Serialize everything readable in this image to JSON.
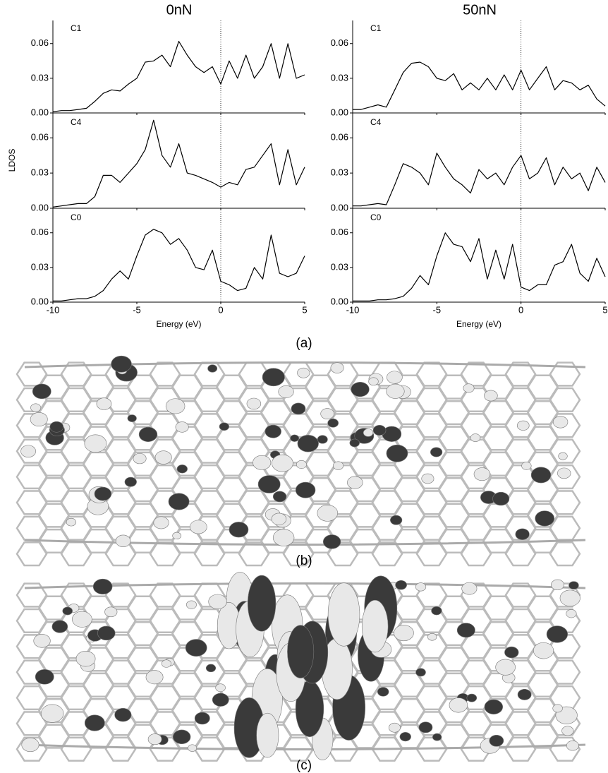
{
  "columns": [
    "0nN",
    "50nN"
  ],
  "ylabel": "LDOS",
  "captions": [
    "(a)",
    "(b)",
    "(c)"
  ],
  "chart_data": [
    {
      "type": "line",
      "annotation": "C1",
      "xlim": [
        -10,
        5
      ],
      "ylim": [
        0,
        0.08
      ],
      "xticks": [
        -10,
        -5,
        0,
        5
      ],
      "yticks": [
        {
          "value": 0,
          "label": "0.00"
        },
        0.03,
        0.06
      ],
      "vline": 0,
      "color": "#000000",
      "x": [
        -10,
        -9.5,
        -9,
        -8.5,
        -8,
        -7.5,
        -7,
        -6.5,
        -6,
        -5.5,
        -5,
        -4.5,
        -4,
        -3.5,
        -3,
        -2.5,
        -2,
        -1.5,
        -1,
        -0.5,
        0,
        0.5,
        1,
        1.5,
        2,
        2.5,
        3,
        3.5,
        4,
        4.5,
        5
      ],
      "values": [
        0.001,
        0.002,
        0.002,
        0.003,
        0.004,
        0.01,
        0.017,
        0.02,
        0.019,
        0.025,
        0.03,
        0.044,
        0.045,
        0.05,
        0.04,
        0.062,
        0.05,
        0.04,
        0.035,
        0.04,
        0.025,
        0.045,
        0.03,
        0.05,
        0.03,
        0.04,
        0.06,
        0.03,
        0.06,
        0.03,
        0.033
      ]
    },
    {
      "type": "line",
      "annotation": "C1",
      "xlim": [
        -10,
        5
      ],
      "ylim": [
        0,
        0.08
      ],
      "xticks": [
        -10,
        -5,
        0,
        5
      ],
      "yticks": [
        {
          "value": 0,
          "label": "0.00"
        },
        0.03,
        0.06
      ],
      "vline": 0,
      "color": "#000000",
      "x": [
        -10,
        -9.5,
        -9,
        -8.5,
        -8,
        -7.5,
        -7,
        -6.5,
        -6,
        -5.5,
        -5,
        -4.5,
        -4,
        -3.5,
        -3,
        -2.5,
        -2,
        -1.5,
        -1,
        -0.5,
        0,
        0.5,
        1,
        1.5,
        2,
        2.5,
        3,
        3.5,
        4,
        4.5,
        5
      ],
      "values": [
        0.003,
        0.003,
        0.005,
        0.007,
        0.005,
        0.02,
        0.035,
        0.043,
        0.044,
        0.04,
        0.03,
        0.028,
        0.034,
        0.02,
        0.026,
        0.02,
        0.03,
        0.02,
        0.033,
        0.02,
        0.037,
        0.02,
        0.03,
        0.04,
        0.02,
        0.028,
        0.026,
        0.02,
        0.024,
        0.012,
        0.006
      ]
    },
    {
      "type": "line",
      "annotation": "C4",
      "xlim": [
        -10,
        5
      ],
      "ylim": [
        0,
        0.08
      ],
      "xticks": [
        -10,
        -5,
        0,
        5
      ],
      "yticks": [
        {
          "value": 0,
          "label": "0.00"
        },
        0.03,
        0.06
      ],
      "vline": 0,
      "color": "#000000",
      "x": [
        -10,
        -9.5,
        -9,
        -8.5,
        -8,
        -7.5,
        -7,
        -6.5,
        -6,
        -5.5,
        -5,
        -4.5,
        -4,
        -3.5,
        -3,
        -2.5,
        -2,
        -1.5,
        -1,
        -0.5,
        0,
        0.5,
        1,
        1.5,
        2,
        2.5,
        3,
        3.5,
        4,
        4.5,
        5
      ],
      "values": [
        0.001,
        0.002,
        0.003,
        0.004,
        0.004,
        0.01,
        0.028,
        0.028,
        0.022,
        0.03,
        0.038,
        0.05,
        0.075,
        0.045,
        0.035,
        0.055,
        0.03,
        0.028,
        0.025,
        0.022,
        0.018,
        0.022,
        0.02,
        0.033,
        0.035,
        0.045,
        0.055,
        0.02,
        0.05,
        0.02,
        0.035
      ]
    },
    {
      "type": "line",
      "annotation": "C4",
      "xlim": [
        -10,
        5
      ],
      "ylim": [
        0,
        0.08
      ],
      "xticks": [
        -10,
        -5,
        0,
        5
      ],
      "yticks": [
        {
          "value": 0,
          "label": "0.00"
        },
        0.03,
        0.06
      ],
      "vline": 0,
      "color": "#000000",
      "x": [
        -10,
        -9.5,
        -9,
        -8.5,
        -8,
        -7.5,
        -7,
        -6.5,
        -6,
        -5.5,
        -5,
        -4.5,
        -4,
        -3.5,
        -3,
        -2.5,
        -2,
        -1.5,
        -1,
        -0.5,
        0,
        0.5,
        1,
        1.5,
        2,
        2.5,
        3,
        3.5,
        4,
        4.5,
        5
      ],
      "values": [
        0.002,
        0.002,
        0.003,
        0.004,
        0.003,
        0.02,
        0.038,
        0.035,
        0.03,
        0.02,
        0.047,
        0.035,
        0.025,
        0.02,
        0.013,
        0.033,
        0.025,
        0.03,
        0.02,
        0.035,
        0.045,
        0.025,
        0.03,
        0.043,
        0.02,
        0.035,
        0.025,
        0.03,
        0.015,
        0.035,
        0.022
      ]
    },
    {
      "type": "line",
      "annotation": "C0",
      "xlim": [
        -10,
        5
      ],
      "ylim": [
        0,
        0.08
      ],
      "xticks": [
        -10,
        -5,
        0,
        5
      ],
      "yticks": [
        {
          "value": 0,
          "label": "0.00"
        },
        0.03,
        0.06
      ],
      "vline": 0,
      "color": "#000000",
      "xlabel": "Energy (eV)",
      "x": [
        -10,
        -9.5,
        -9,
        -8.5,
        -8,
        -7.5,
        -7,
        -6.5,
        -6,
        -5.5,
        -5,
        -4.5,
        -4,
        -3.5,
        -3,
        -2.5,
        -2,
        -1.5,
        -1,
        -0.5,
        0,
        0.5,
        1,
        1.5,
        2,
        2.5,
        3,
        3.5,
        4,
        4.5,
        5
      ],
      "values": [
        0.001,
        0.001,
        0.002,
        0.003,
        0.003,
        0.005,
        0.01,
        0.02,
        0.027,
        0.02,
        0.04,
        0.058,
        0.063,
        0.06,
        0.05,
        0.055,
        0.045,
        0.03,
        0.028,
        0.045,
        0.018,
        0.015,
        0.01,
        0.012,
        0.03,
        0.02,
        0.058,
        0.025,
        0.022,
        0.025,
        0.04
      ]
    },
    {
      "type": "line",
      "annotation": "C0",
      "xlim": [
        -10,
        5
      ],
      "ylim": [
        0,
        0.08
      ],
      "xticks": [
        -10,
        -5,
        0,
        5
      ],
      "yticks": [
        {
          "value": 0,
          "label": "0.00"
        },
        0.03,
        0.06
      ],
      "vline": 0,
      "color": "#000000",
      "xlabel": "Energy (eV)",
      "x": [
        -10,
        -9.5,
        -9,
        -8.5,
        -8,
        -7.5,
        -7,
        -6.5,
        -6,
        -5.5,
        -5,
        -4.5,
        -4,
        -3.5,
        -3,
        -2.5,
        -2,
        -1.5,
        -1,
        -0.5,
        0,
        0.5,
        1,
        1.5,
        2,
        2.5,
        3,
        3.5,
        4,
        4.5,
        5
      ],
      "values": [
        0.001,
        0.001,
        0.001,
        0.002,
        0.002,
        0.003,
        0.005,
        0.012,
        0.023,
        0.015,
        0.04,
        0.06,
        0.05,
        0.048,
        0.035,
        0.055,
        0.02,
        0.045,
        0.02,
        0.05,
        0.013,
        0.01,
        0.015,
        0.015,
        0.032,
        0.035,
        0.05,
        0.025,
        0.018,
        0.038,
        0.022
      ]
    }
  ]
}
